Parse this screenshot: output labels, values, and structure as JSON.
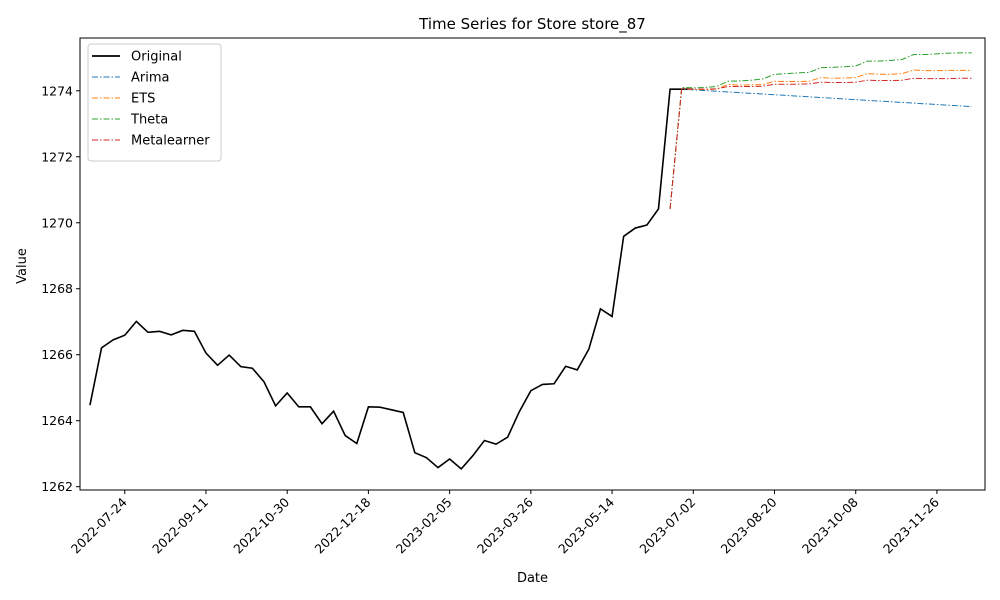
{
  "chart_data": {
    "type": "line",
    "title": "Time Series for Store store_87",
    "xlabel": "Date",
    "ylabel": "Value",
    "xlim": [
      "2022-06-27",
      "2023-12-25"
    ],
    "ylim": [
      1261.9,
      1275.6
    ],
    "x_ticks": [
      "2022-07-24",
      "2022-09-11",
      "2022-10-30",
      "2022-12-18",
      "2023-02-05",
      "2023-03-26",
      "2023-05-14",
      "2023-07-02",
      "2023-08-20",
      "2023-10-08",
      "2023-11-26"
    ],
    "y_ticks": [
      1262,
      1264,
      1266,
      1268,
      1270,
      1272,
      1274
    ],
    "grid": false,
    "legend_position": "top-left",
    "series": [
      {
        "name": "Original",
        "color": "#000000",
        "style": "solid",
        "x": [
          "2022-07-03",
          "2022-07-10",
          "2022-07-17",
          "2022-07-24",
          "2022-07-31",
          "2022-08-07",
          "2022-08-14",
          "2022-08-21",
          "2022-08-28",
          "2022-09-04",
          "2022-09-11",
          "2022-09-18",
          "2022-09-25",
          "2022-10-02",
          "2022-10-09",
          "2022-10-16",
          "2022-10-23",
          "2022-10-30",
          "2022-11-06",
          "2022-11-13",
          "2022-11-20",
          "2022-11-27",
          "2022-12-04",
          "2022-12-11",
          "2022-12-18",
          "2022-12-25",
          "2023-01-01",
          "2023-01-08",
          "2023-01-15",
          "2023-01-22",
          "2023-01-29",
          "2023-02-05",
          "2023-02-12",
          "2023-02-19",
          "2023-02-26",
          "2023-03-05",
          "2023-03-12",
          "2023-03-19",
          "2023-03-26",
          "2023-04-02",
          "2023-04-09",
          "2023-04-16",
          "2023-04-23",
          "2023-04-30",
          "2023-05-07",
          "2023-05-14",
          "2023-05-21",
          "2023-05-28",
          "2023-06-04",
          "2023-06-11",
          "2023-06-18",
          "2023-06-25",
          "2023-07-02"
        ],
        "values": [
          1264.47,
          1266.21,
          1266.45,
          1266.59,
          1267.01,
          1266.68,
          1266.71,
          1266.6,
          1266.74,
          1266.71,
          1266.05,
          1265.68,
          1265.99,
          1265.64,
          1265.59,
          1265.18,
          1264.45,
          1264.84,
          1264.42,
          1264.42,
          1263.91,
          1264.29,
          1263.55,
          1263.31,
          1264.42,
          1264.41,
          1264.33,
          1264.25,
          1263.03,
          1262.88,
          1262.58,
          1262.84,
          1262.54,
          1262.94,
          1263.4,
          1263.29,
          1263.5,
          1264.27,
          1264.91,
          1265.1,
          1265.12,
          1265.65,
          1265.54,
          1266.17,
          1267.39,
          1267.16,
          1269.59,
          1269.84,
          1269.93,
          1270.42,
          1274.05,
          1274.05,
          1274.05
        ]
      },
      {
        "name": "Arima",
        "color": "#1f77b4",
        "style": "dashdot",
        "x": [
          "2023-06-18",
          "2023-06-25",
          "2023-12-17"
        ],
        "values": [
          1270.42,
          1274.05,
          1273.52
        ]
      },
      {
        "name": "ETS",
        "color": "#ff7f0e",
        "style": "dashdot",
        "x": [
          "2023-06-18",
          "2023-06-25",
          "2023-07-02",
          "2023-07-09",
          "2023-07-16",
          "2023-07-23",
          "2023-07-30",
          "2023-08-06",
          "2023-08-13",
          "2023-08-20",
          "2023-08-27",
          "2023-09-03",
          "2023-09-10",
          "2023-09-17",
          "2023-09-24",
          "2023-10-01",
          "2023-10-08",
          "2023-10-15",
          "2023-10-22",
          "2023-10-29",
          "2023-11-05",
          "2023-11-12",
          "2023-11-19",
          "2023-11-26",
          "2023-12-03",
          "2023-12-10",
          "2023-12-17"
        ],
        "values": [
          1270.42,
          1274.07,
          1274.04,
          1274.04,
          1274.05,
          1274.19,
          1274.17,
          1274.18,
          1274.19,
          1274.29,
          1274.28,
          1274.28,
          1274.29,
          1274.4,
          1274.38,
          1274.39,
          1274.4,
          1274.52,
          1274.5,
          1274.5,
          1274.52,
          1274.63,
          1274.61,
          1274.61,
          1274.62,
          1274.62,
          1274.62
        ]
      },
      {
        "name": "Theta",
        "color": "#2ca02c",
        "style": "dashdot",
        "x": [
          "2023-06-18",
          "2023-06-25",
          "2023-07-02",
          "2023-07-09",
          "2023-07-16",
          "2023-07-23",
          "2023-07-30",
          "2023-08-06",
          "2023-08-13",
          "2023-08-20",
          "2023-08-27",
          "2023-09-03",
          "2023-09-10",
          "2023-09-17",
          "2023-09-24",
          "2023-10-01",
          "2023-10-08",
          "2023-10-15",
          "2023-10-22",
          "2023-10-29",
          "2023-11-05",
          "2023-11-12",
          "2023-11-19",
          "2023-11-26",
          "2023-12-03",
          "2023-12-10",
          "2023-12-17"
        ],
        "values": [
          1270.42,
          1274.1,
          1274.09,
          1274.1,
          1274.13,
          1274.29,
          1274.3,
          1274.32,
          1274.36,
          1274.5,
          1274.52,
          1274.54,
          1274.56,
          1274.7,
          1274.71,
          1274.73,
          1274.75,
          1274.9,
          1274.9,
          1274.92,
          1274.95,
          1275.1,
          1275.1,
          1275.12,
          1275.14,
          1275.15,
          1275.15
        ]
      },
      {
        "name": "Metalearner",
        "color": "#d62728",
        "style": "dashdot",
        "x": [
          "2023-06-18",
          "2023-06-25",
          "2023-07-02",
          "2023-07-09",
          "2023-07-16",
          "2023-07-23",
          "2023-07-30",
          "2023-08-06",
          "2023-08-13",
          "2023-08-20",
          "2023-08-27",
          "2023-09-03",
          "2023-09-10",
          "2023-09-17",
          "2023-09-24",
          "2023-10-01",
          "2023-10-08",
          "2023-10-15",
          "2023-10-22",
          "2023-10-29",
          "2023-11-05",
          "2023-11-12",
          "2023-11-19",
          "2023-11-26",
          "2023-12-03",
          "2023-12-10",
          "2023-12-17"
        ],
        "values": [
          1270.42,
          1274.08,
          1274.05,
          1274.05,
          1274.06,
          1274.13,
          1274.13,
          1274.13,
          1274.14,
          1274.2,
          1274.2,
          1274.2,
          1274.21,
          1274.26,
          1274.25,
          1274.25,
          1274.26,
          1274.32,
          1274.31,
          1274.31,
          1274.32,
          1274.38,
          1274.37,
          1274.37,
          1274.37,
          1274.38,
          1274.38
        ]
      }
    ]
  }
}
